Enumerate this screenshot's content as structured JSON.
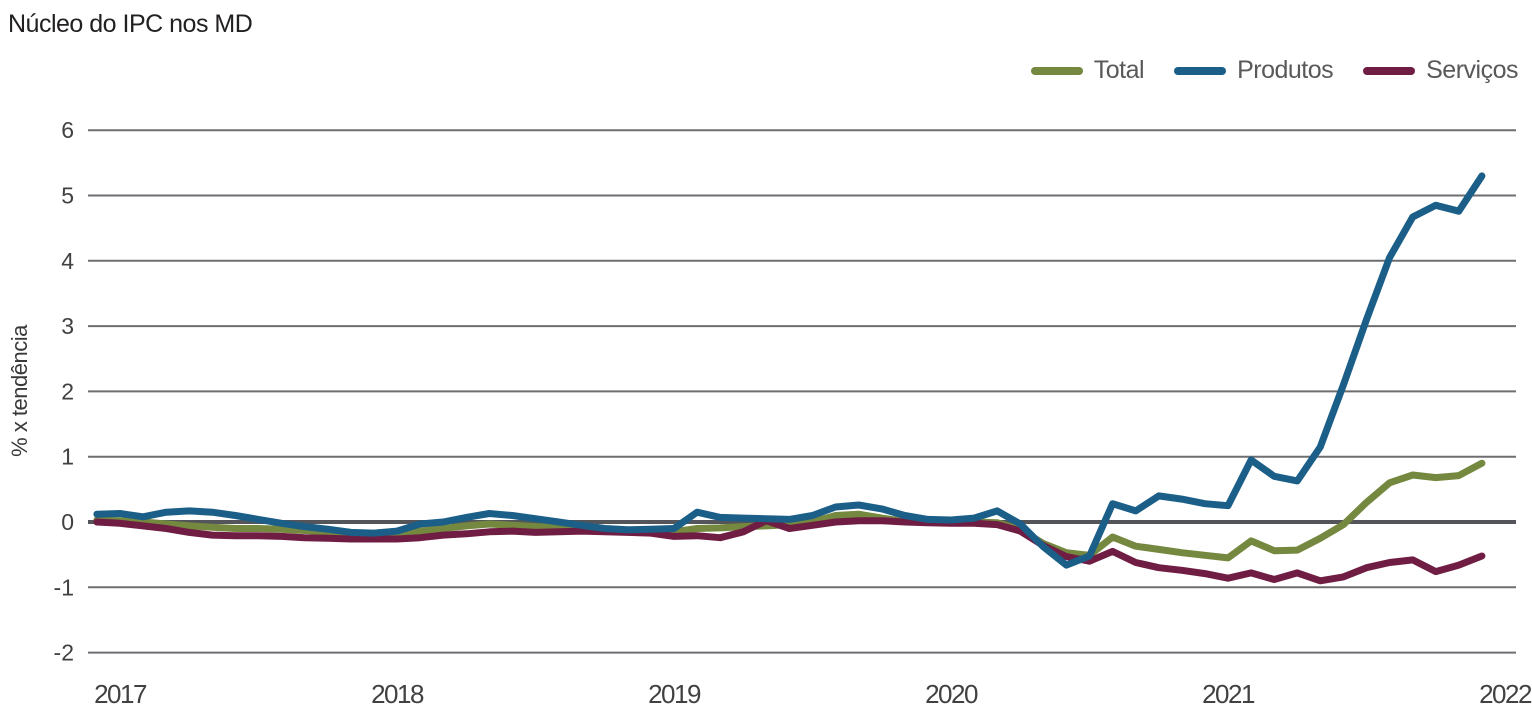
{
  "chart_data": {
    "type": "line",
    "title": "Núcleo do IPC nos MD",
    "ylabel": "% x tendência",
    "x_tick_labels": [
      "2017",
      "2018",
      "2019",
      "2020",
      "2021",
      "2022"
    ],
    "y_ticks": [
      6,
      5,
      4,
      3,
      2,
      1,
      0,
      -1,
      -2
    ],
    "ylim": [
      -2,
      6
    ],
    "x_start": "2016-12",
    "x_frequency": "monthly",
    "grid": "horizontal",
    "legend_position": "top-right",
    "grid_color": "#6d6e71",
    "zero_line_color": "#54555a",
    "tick_label_color": "#414042",
    "series": [
      {
        "name": "Total",
        "color": "#75883f",
        "values": [
          0.03,
          0.02,
          0.0,
          -0.03,
          -0.06,
          -0.08,
          -0.1,
          -0.1,
          -0.11,
          -0.13,
          -0.15,
          -0.17,
          -0.18,
          -0.19,
          -0.14,
          -0.1,
          -0.06,
          -0.03,
          -0.05,
          -0.07,
          -0.09,
          -0.11,
          -0.12,
          -0.13,
          -0.13,
          -0.15,
          -0.1,
          -0.09,
          -0.07,
          -0.06,
          -0.04,
          0.0,
          0.1,
          0.12,
          0.06,
          0.01,
          0.0,
          0.01,
          0.0,
          -0.01,
          -0.12,
          -0.33,
          -0.47,
          -0.51,
          -0.23,
          -0.37,
          -0.42,
          -0.47,
          -0.51,
          -0.55,
          -0.29,
          -0.44,
          -0.43,
          -0.25,
          -0.04,
          0.3,
          0.6,
          0.72,
          0.68,
          0.71,
          0.9
        ]
      },
      {
        "name": "Produtos",
        "color": "#1b5f88",
        "values": [
          0.12,
          0.13,
          0.08,
          0.15,
          0.17,
          0.15,
          0.1,
          0.04,
          -0.02,
          -0.07,
          -0.11,
          -0.16,
          -0.17,
          -0.14,
          -0.03,
          0.0,
          0.07,
          0.13,
          0.1,
          0.05,
          0.0,
          -0.05,
          -0.1,
          -0.12,
          -0.11,
          -0.1,
          0.15,
          0.07,
          0.06,
          0.05,
          0.04,
          0.1,
          0.23,
          0.26,
          0.2,
          0.1,
          0.04,
          0.03,
          0.06,
          0.17,
          -0.03,
          -0.38,
          -0.66,
          -0.52,
          0.28,
          0.17,
          0.4,
          0.35,
          0.28,
          0.25,
          0.95,
          0.7,
          0.63,
          1.15,
          2.1,
          3.1,
          4.05,
          4.67,
          4.85,
          4.76,
          5.3
        ]
      },
      {
        "name": "Serviços",
        "color": "#701d44",
        "values": [
          0.0,
          -0.02,
          -0.06,
          -0.1,
          -0.16,
          -0.2,
          -0.21,
          -0.21,
          -0.22,
          -0.24,
          -0.25,
          -0.26,
          -0.26,
          -0.26,
          -0.24,
          -0.2,
          -0.18,
          -0.15,
          -0.14,
          -0.16,
          -0.15,
          -0.14,
          -0.15,
          -0.16,
          -0.17,
          -0.22,
          -0.21,
          -0.24,
          -0.15,
          0.02,
          -0.1,
          -0.05,
          0.0,
          0.02,
          0.02,
          0.0,
          -0.01,
          -0.02,
          -0.02,
          -0.04,
          -0.14,
          -0.36,
          -0.53,
          -0.6,
          -0.45,
          -0.62,
          -0.7,
          -0.74,
          -0.79,
          -0.86,
          -0.78,
          -0.88,
          -0.78,
          -0.9,
          -0.84,
          -0.7,
          -0.62,
          -0.58,
          -0.76,
          -0.66,
          -0.52
        ]
      }
    ]
  }
}
